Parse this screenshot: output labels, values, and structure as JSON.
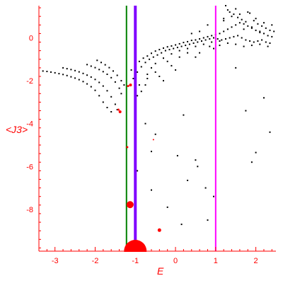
{
  "chart_data": {
    "type": "scatter",
    "xlabel": "E",
    "ylabel": "<J3>",
    "xlim": [
      -3.4,
      2.5
    ],
    "ylim": [
      -9.95,
      1.5
    ],
    "x_ticks": [
      -3,
      -2,
      -1,
      0,
      1,
      2
    ],
    "x_tick_labels": [
      "-3",
      "-2",
      "-1",
      "0",
      "1",
      "2"
    ],
    "y_ticks": [
      0,
      -2,
      -4,
      -6,
      -8
    ],
    "y_tick_labels": [
      "0",
      "-2",
      "-4",
      "-6",
      "-8"
    ],
    "grid": false,
    "colors": {
      "axis": "#ff0000",
      "points": "#000000",
      "highlight": "#ff0000",
      "line_green": "#008000",
      "line_purple": "#7f00ff",
      "line_magenta": "#ff00ff"
    },
    "vertical_lines": [
      {
        "x": -1.22,
        "color": "#008000"
      },
      {
        "x": -1.0,
        "color": "#7f00ff"
      },
      {
        "x": 1.0,
        "color": "#ff00ff"
      }
    ],
    "highlight_points": [
      {
        "x": -1.13,
        "y": -7.78,
        "r": 5
      },
      {
        "x": -0.4,
        "y": -8.97,
        "r": 2.5
      },
      {
        "x": -1.12,
        "y": -2.2,
        "r": 2
      },
      {
        "x": -1.18,
        "y": -2.25,
        "r": 1.5
      },
      {
        "x": -1.38,
        "y": -3.45,
        "r": 2
      },
      {
        "x": -1.42,
        "y": -3.35,
        "r": 1.5
      },
      {
        "x": -1.2,
        "y": -5.1,
        "r": 1.5
      },
      {
        "x": -0.55,
        "y": -4.75,
        "r": 1
      },
      {
        "x": -1.0,
        "y": -9.95,
        "r": 16
      }
    ],
    "series": [
      {
        "x": [
          -3.3,
          -3.2,
          -3.1,
          -3.0,
          -2.9,
          -2.8,
          -2.7,
          -2.6,
          -2.5,
          -2.4,
          -2.3,
          -2.2,
          -2.1,
          -2.0,
          -1.9,
          -1.8,
          -1.7,
          -1.6
        ],
        "y": [
          -1.55,
          -1.57,
          -1.6,
          -1.63,
          -1.67,
          -1.71,
          -1.76,
          -1.82,
          -1.88,
          -1.95,
          -2.04,
          -2.15,
          -2.28,
          -2.45,
          -2.7,
          -3.0,
          -3.25,
          -3.45
        ]
      },
      {
        "x": [
          -2.8,
          -2.7,
          -2.6,
          -2.5,
          -2.4,
          -2.3,
          -2.2,
          -2.1,
          -2.0,
          -1.9,
          -1.8,
          -1.7,
          -1.6,
          -1.5,
          -1.45
        ],
        "y": [
          -1.4,
          -1.44,
          -1.48,
          -1.53,
          -1.59,
          -1.66,
          -1.74,
          -1.83,
          -1.94,
          -2.08,
          -2.25,
          -2.47,
          -2.75,
          -3.1,
          -3.35
        ]
      },
      {
        "x": [
          -2.2,
          -2.1,
          -2.0,
          -1.9,
          -1.8,
          -1.7,
          -1.6,
          -1.5,
          -1.4,
          -1.35
        ],
        "y": [
          -1.25,
          -1.32,
          -1.39,
          -1.48,
          -1.58,
          -1.7,
          -1.86,
          -2.06,
          -2.35,
          -2.6
        ]
      },
      {
        "x": [
          -1.95,
          -1.85,
          -1.75,
          -1.65,
          -1.55,
          -1.45,
          -1.35,
          -1.28
        ],
        "y": [
          -1.05,
          -1.15,
          -1.26,
          -1.39,
          -1.55,
          -1.75,
          -2.0,
          -2.2
        ]
      },
      {
        "x": [
          -1.1,
          -1.0,
          -0.9,
          -0.8,
          -0.7,
          -0.6,
          -0.5,
          -0.4,
          -0.3,
          -0.2,
          -0.1,
          0.0,
          0.1,
          0.2,
          0.3,
          0.4,
          0.5,
          0.6,
          0.7,
          0.8,
          0.9,
          1.0,
          1.1,
          1.2,
          1.3,
          1.4,
          1.5,
          1.6,
          1.7,
          1.8,
          1.9,
          2.0,
          2.1,
          2.2,
          2.3,
          2.4
        ],
        "y": [
          -1.5,
          -1.3,
          -1.1,
          -0.95,
          -0.85,
          -0.72,
          -0.62,
          -0.55,
          -0.48,
          -0.42,
          -0.38,
          -0.33,
          -0.28,
          -0.22,
          -0.18,
          -0.12,
          -0.1,
          -0.05,
          0.0,
          0.05,
          0.1,
          0.15,
          0.2,
          0.3,
          0.4,
          0.5,
          0.6,
          0.7,
          0.65,
          0.55,
          0.45,
          0.35,
          0.25,
          0.2,
          0.1,
          0.05
        ]
      },
      {
        "x": [
          -1.05,
          -0.95,
          -0.85,
          -0.75,
          -0.65,
          -0.55,
          -0.45,
          -0.35,
          -0.25,
          -0.15,
          -0.05,
          0.05,
          0.15,
          0.25,
          0.35,
          0.45,
          0.55,
          0.65,
          0.75,
          0.85,
          0.95,
          1.05,
          1.15,
          1.25,
          1.35,
          1.45,
          1.55,
          1.65,
          1.75,
          1.85,
          1.95,
          2.05,
          2.15,
          2.25,
          2.35
        ],
        "y": [
          -1.9,
          -1.6,
          -1.35,
          -1.15,
          -1.0,
          -0.9,
          -0.8,
          -0.7,
          -0.6,
          -0.55,
          -0.5,
          -0.45,
          -0.4,
          -0.35,
          -0.3,
          -0.25,
          -0.2,
          -0.15,
          -0.1,
          -0.05,
          0.0,
          -0.05,
          -0.1,
          -0.05,
          0.0,
          0.05,
          0.1,
          0.0,
          -0.1,
          -0.15,
          -0.2,
          -0.15,
          -0.1,
          -0.2,
          -0.25
        ]
      },
      {
        "x": [
          -0.9,
          -0.7,
          -0.5,
          -0.3,
          -0.1,
          0.1,
          0.3,
          0.5,
          0.7,
          0.9,
          1.1,
          1.3,
          1.5,
          1.7,
          1.9,
          2.1,
          2.3,
          1.2,
          1.4,
          1.6,
          1.8,
          2.0,
          2.2,
          2.4,
          1.3,
          1.5,
          1.7,
          1.9,
          2.1,
          0.8,
          0.6,
          0.4
        ],
        "y": [
          -2.2,
          -1.7,
          -1.2,
          -0.95,
          -0.75,
          -0.6,
          -0.5,
          -0.4,
          -0.3,
          -0.2,
          -0.35,
          -0.25,
          -0.3,
          -0.4,
          -0.35,
          -0.3,
          -0.4,
          0.8,
          1.0,
          1.1,
          1.2,
          0.9,
          0.7,
          0.6,
          1.3,
          1.35,
          0.4,
          0.5,
          0.3,
          0.6,
          0.3,
          0.2
        ]
      },
      {
        "x": [
          -0.95,
          -0.85,
          -0.75,
          -0.7,
          -0.6,
          -0.5,
          -0.4,
          -0.3,
          -0.2,
          -0.1,
          0.0,
          0.1,
          0.3,
          0.5,
          0.6,
          0.85,
          0.95,
          1.1,
          1.2,
          1.35,
          1.45,
          1.55,
          1.65,
          1.75,
          1.85,
          1.95,
          2.05,
          2.15,
          2.25,
          2.35,
          2.45,
          1.25
        ],
        "y": [
          -2.7,
          -2.5,
          -2.2,
          -1.9,
          -1.4,
          -1.6,
          -1.8,
          -2.0,
          -1.1,
          -1.3,
          -1.5,
          -0.9,
          -0.7,
          -0.9,
          -0.7,
          -0.4,
          -0.5,
          -0.15,
          0.9,
          1.2,
          1.1,
          0.95,
          0.85,
          0.75,
          1.15,
          0.8,
          0.65,
          0.55,
          0.45,
          0.35,
          0.3,
          1.5
        ]
      },
      {
        "x": [
          -0.75,
          -0.6,
          -0.5,
          0.2,
          0.5,
          0.8,
          0.95,
          1.5,
          1.75,
          1.9,
          2.0,
          2.2,
          2.35,
          -0.95,
          0.05,
          0.3,
          0.55,
          0.75,
          -0.6,
          -0.2,
          0.15
        ],
        "y": [
          -4.0,
          -5.3,
          -4.5,
          -3.6,
          -5.7,
          -8.5,
          -7.4,
          -1.4,
          -3.4,
          -5.8,
          -5.35,
          -2.8,
          -4.4,
          -6.2,
          -5.5,
          -6.65,
          -6.0,
          -7.0,
          -7.1,
          -7.9,
          -8.7
        ]
      }
    ]
  }
}
